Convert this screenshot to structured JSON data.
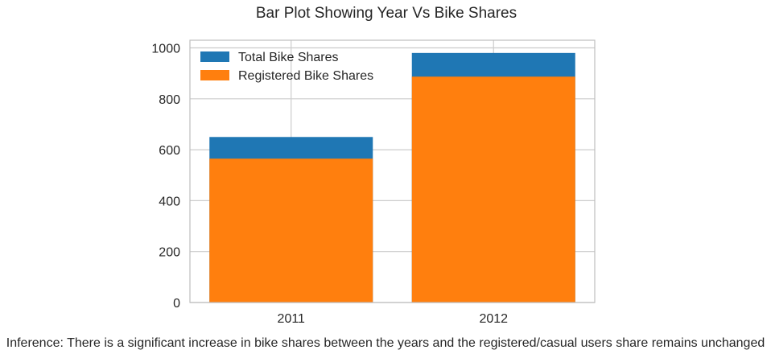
{
  "chart_data": {
    "type": "bar",
    "title": "Bar Plot Showing Year Vs Bike Shares",
    "xlabel": "",
    "ylabel": "",
    "categories": [
      "2011",
      "2012"
    ],
    "series": [
      {
        "name": "Total Bike Shares",
        "values": [
          650,
          980
        ]
      },
      {
        "name": "Registered Bike Shares",
        "values": [
          565,
          887
        ]
      }
    ],
    "ylim": [
      0,
      1030
    ],
    "yticks": [
      0,
      200,
      400,
      600,
      800,
      1000
    ],
    "grid": true,
    "legend_position": "top-left",
    "caption": "Inference: There is a significant increase in bike shares between the years and the registered/casual users share remains unchanged"
  },
  "colors": {
    "total": "#1f77b4",
    "registered": "#ff7f0e",
    "grid": "#cccccc",
    "axes": "#bdbdbd"
  }
}
